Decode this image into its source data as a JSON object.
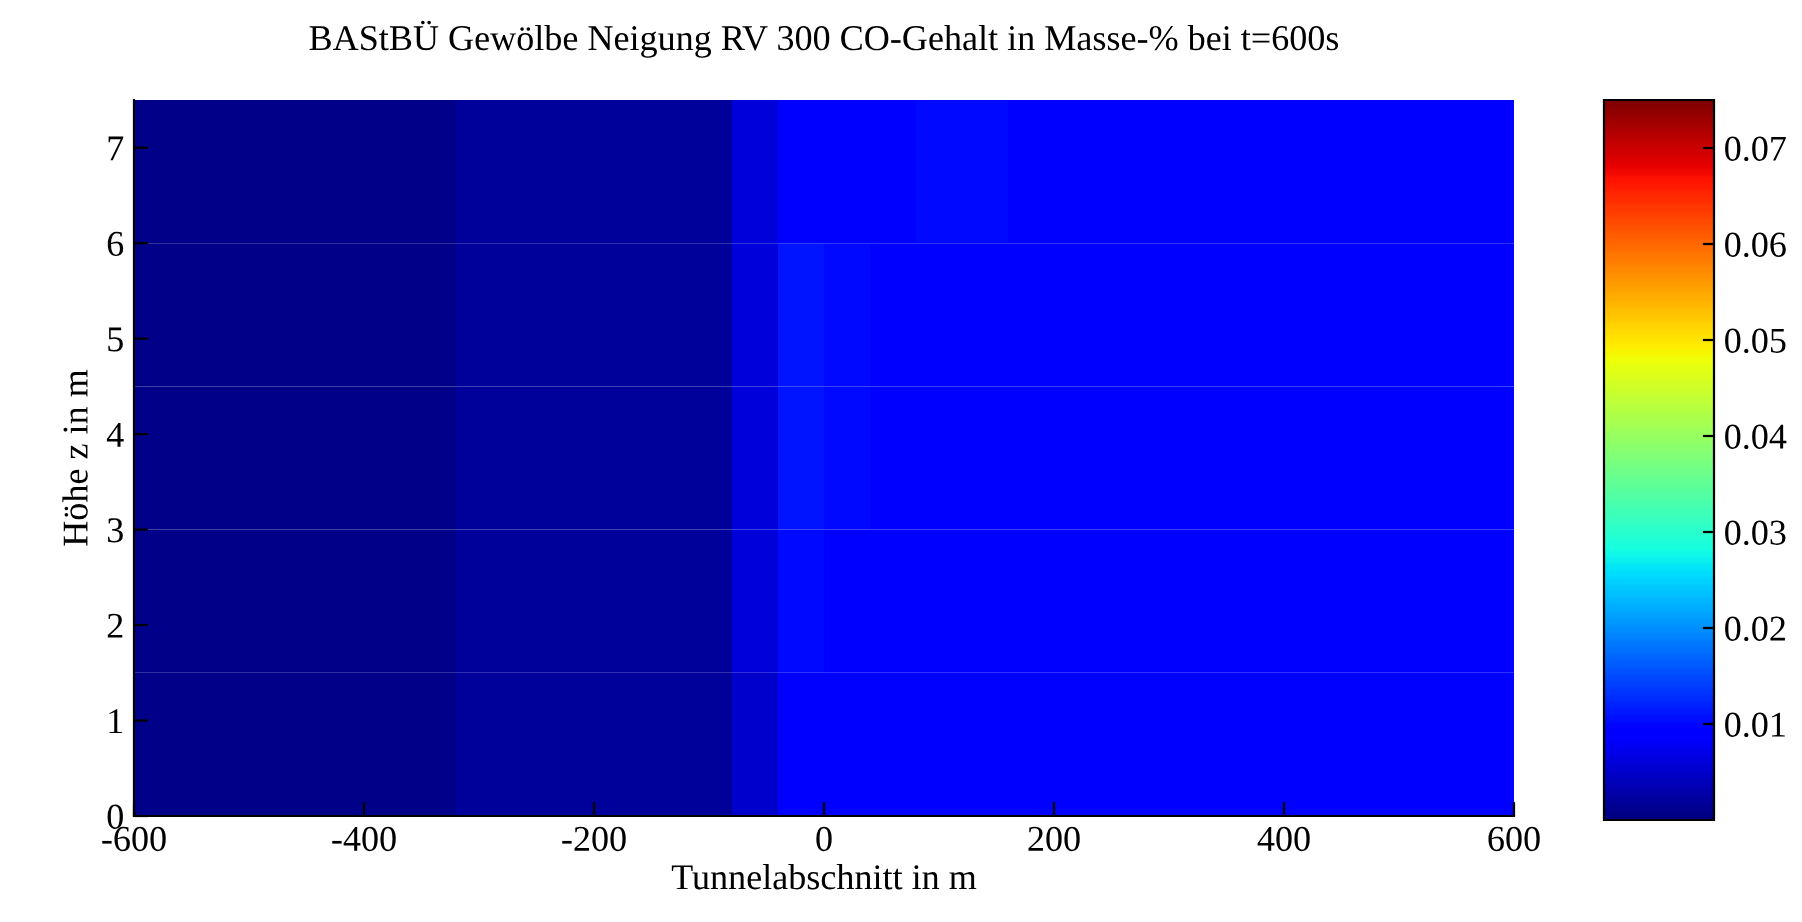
{
  "chart_data": {
    "type": "heatmap",
    "title": "BAStBÜ Gewölbe Neigung RV 300 CO-Gehalt in Masse-% bei t=600s",
    "xlabel": "Tunnelabschnitt in m",
    "ylabel": "Höhe z in m",
    "x": [
      -580,
      -540,
      -500,
      -460,
      -420,
      -380,
      -340,
      -300,
      -260,
      -220,
      -180,
      -140,
      -100,
      -60,
      -20,
      20,
      60,
      100,
      140,
      180,
      220,
      260,
      300,
      340,
      380,
      420,
      460,
      500,
      540,
      580
    ],
    "y": [
      6.75,
      5.25,
      3.75,
      2.25,
      0.75
    ],
    "cells": [
      [
        0.0008,
        0.0008,
        0.0008,
        0.0008,
        0.0008,
        0.0008,
        0.0008,
        0.002,
        0.002,
        0.002,
        0.002,
        0.002,
        0.002,
        0.006,
        0.009,
        0.009,
        0.009,
        0.01,
        0.01,
        0.009,
        0.009,
        0.009,
        0.009,
        0.009,
        0.009,
        0.009,
        0.009,
        0.009,
        0.009,
        0.009
      ],
      [
        0.0008,
        0.0008,
        0.0008,
        0.0008,
        0.0008,
        0.0008,
        0.0008,
        0.002,
        0.002,
        0.002,
        0.002,
        0.002,
        0.002,
        0.006,
        0.011,
        0.01,
        0.009,
        0.009,
        0.009,
        0.009,
        0.009,
        0.009,
        0.009,
        0.009,
        0.009,
        0.009,
        0.009,
        0.009,
        0.009,
        0.009
      ],
      [
        0.0008,
        0.0008,
        0.0008,
        0.0008,
        0.0008,
        0.0008,
        0.0008,
        0.002,
        0.002,
        0.002,
        0.002,
        0.002,
        0.002,
        0.006,
        0.011,
        0.01,
        0.009,
        0.009,
        0.009,
        0.009,
        0.009,
        0.009,
        0.009,
        0.009,
        0.009,
        0.009,
        0.009,
        0.009,
        0.009,
        0.009
      ],
      [
        0.0008,
        0.0008,
        0.0008,
        0.0008,
        0.0008,
        0.0008,
        0.0008,
        0.002,
        0.002,
        0.002,
        0.002,
        0.002,
        0.002,
        0.006,
        0.01,
        0.009,
        0.009,
        0.009,
        0.009,
        0.009,
        0.009,
        0.009,
        0.009,
        0.009,
        0.009,
        0.009,
        0.009,
        0.009,
        0.009,
        0.009
      ],
      [
        0.0008,
        0.0008,
        0.0008,
        0.0008,
        0.0008,
        0.0008,
        0.0008,
        0.002,
        0.002,
        0.002,
        0.002,
        0.002,
        0.002,
        0.005,
        0.009,
        0.009,
        0.009,
        0.009,
        0.009,
        0.009,
        0.009,
        0.009,
        0.009,
        0.009,
        0.009,
        0.009,
        0.009,
        0.009,
        0.009,
        0.009
      ]
    ],
    "xlim": [
      -600,
      600
    ],
    "xticks": [
      -600,
      -400,
      -200,
      0,
      200,
      400,
      600
    ],
    "ylim": [
      0,
      7.5
    ],
    "yticks": [
      0,
      1,
      2,
      3,
      4,
      5,
      6,
      7
    ],
    "clim": [
      0,
      0.075
    ],
    "cticks": [
      0.01,
      0.02,
      0.03,
      0.04,
      0.05,
      0.06,
      0.07
    ],
    "grid": false
  }
}
